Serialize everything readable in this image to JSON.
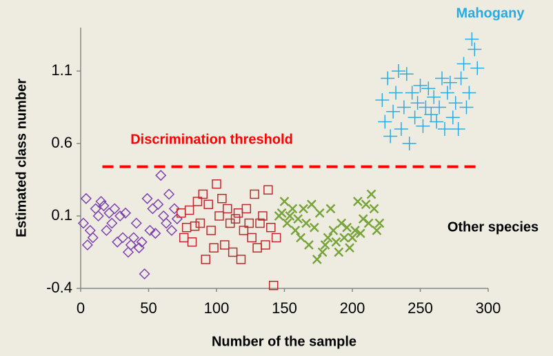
{
  "chart_data": {
    "type": "scatter",
    "xlabel": "Number of the sample",
    "ylabel": "Estimated class number",
    "xlim": [
      0,
      300
    ],
    "ylim": [
      -0.4,
      1.4
    ],
    "xticks": [
      0,
      50,
      100,
      150,
      200,
      250,
      300
    ],
    "yticks": [
      -0.4,
      0.1,
      0.6,
      1.1
    ],
    "series": [
      {
        "marker": "diamond",
        "color": "#7b3fb0",
        "x": [
          2,
          4,
          5,
          7,
          9,
          11,
          13,
          15,
          17,
          19,
          21,
          23,
          25,
          27,
          29,
          31,
          33,
          35,
          37,
          39,
          41,
          43,
          45,
          47,
          49,
          51,
          53,
          55,
          57,
          59,
          61,
          63,
          65,
          67,
          69,
          71
        ],
        "values": [
          0.05,
          0.22,
          -0.1,
          0.0,
          -0.05,
          0.15,
          0.1,
          0.2,
          0.17,
          0.0,
          0.12,
          0.05,
          0.15,
          -0.08,
          0.1,
          -0.05,
          0.12,
          -0.15,
          -0.1,
          -0.05,
          0.05,
          -0.12,
          -0.08,
          -0.3,
          0.22,
          0.0,
          0.15,
          -0.02,
          0.18,
          0.38,
          0.1,
          0.05,
          0.25,
          0.0,
          0.15,
          0.08
        ]
      },
      {
        "marker": "square",
        "color": "#c0262d",
        "x": [
          74,
          76,
          78,
          80,
          82,
          84,
          86,
          88,
          90,
          92,
          94,
          96,
          98,
          100,
          102,
          104,
          106,
          108,
          110,
          112,
          114,
          116,
          118,
          120,
          122,
          124,
          126,
          128,
          130,
          132,
          134,
          136,
          138,
          140,
          142,
          144
        ],
        "values": [
          0.12,
          -0.05,
          0.02,
          0.14,
          -0.08,
          0.03,
          0.2,
          0.05,
          0.25,
          -0.2,
          0.18,
          0.0,
          -0.12,
          0.32,
          0.1,
          0.22,
          -0.1,
          0.15,
          0.05,
          -0.15,
          0.08,
          0.12,
          -0.2,
          0.0,
          0.15,
          0.05,
          -0.05,
          0.25,
          -0.12,
          0.05,
          0.1,
          -0.1,
          0.28,
          0.02,
          -0.38,
          -0.05
        ]
      },
      {
        "marker": "x",
        "color": "#77a33a",
        "x": [
          146,
          148,
          150,
          152,
          154,
          156,
          158,
          160,
          162,
          164,
          166,
          168,
          170,
          172,
          174,
          176,
          178,
          180,
          182,
          184,
          186,
          188,
          190,
          192,
          194,
          196,
          198,
          200,
          202,
          204,
          206,
          208,
          210,
          212,
          214,
          216,
          218,
          220
        ],
        "values": [
          0.1,
          0.12,
          0.2,
          0.05,
          0.1,
          0.15,
          0.0,
          0.08,
          -0.05,
          0.15,
          0.05,
          -0.1,
          0.18,
          0.02,
          -0.2,
          0.12,
          -0.15,
          -0.1,
          -0.05,
          0.15,
          0.0,
          -0.08,
          -0.15,
          0.05,
          -0.05,
          0.02,
          -0.12,
          -0.05,
          0.0,
          0.2,
          -0.02,
          0.08,
          0.18,
          0.05,
          0.25,
          0.15,
          0.0,
          0.05
        ]
      },
      {
        "marker": "plus",
        "color": "#29abe2",
        "x": [
          222,
          224,
          226,
          228,
          230,
          232,
          234,
          236,
          238,
          240,
          242,
          244,
          246,
          248,
          250,
          252,
          254,
          256,
          258,
          260,
          262,
          264,
          266,
          268,
          270,
          272,
          274,
          276,
          278,
          280,
          282,
          284,
          286,
          288,
          290,
          292
        ],
        "values": [
          0.9,
          0.75,
          1.05,
          0.65,
          0.82,
          0.95,
          1.1,
          0.7,
          0.85,
          1.08,
          0.6,
          0.95,
          0.78,
          0.88,
          1.0,
          0.72,
          0.85,
          0.98,
          0.8,
          0.92,
          0.75,
          0.85,
          1.05,
          0.7,
          0.95,
          1.02,
          0.78,
          0.88,
          0.7,
          1.05,
          1.15,
          0.85,
          0.95,
          1.32,
          1.25,
          1.12
        ]
      }
    ],
    "threshold": {
      "label": "Discrimination threshold",
      "value": 0.44,
      "x": [
        16,
        293
      ],
      "color": "#ff0000"
    },
    "annotations": [
      {
        "text": "Mahogany",
        "color": "#29abe2"
      },
      {
        "text": "Other species",
        "color": "#000000"
      }
    ]
  }
}
